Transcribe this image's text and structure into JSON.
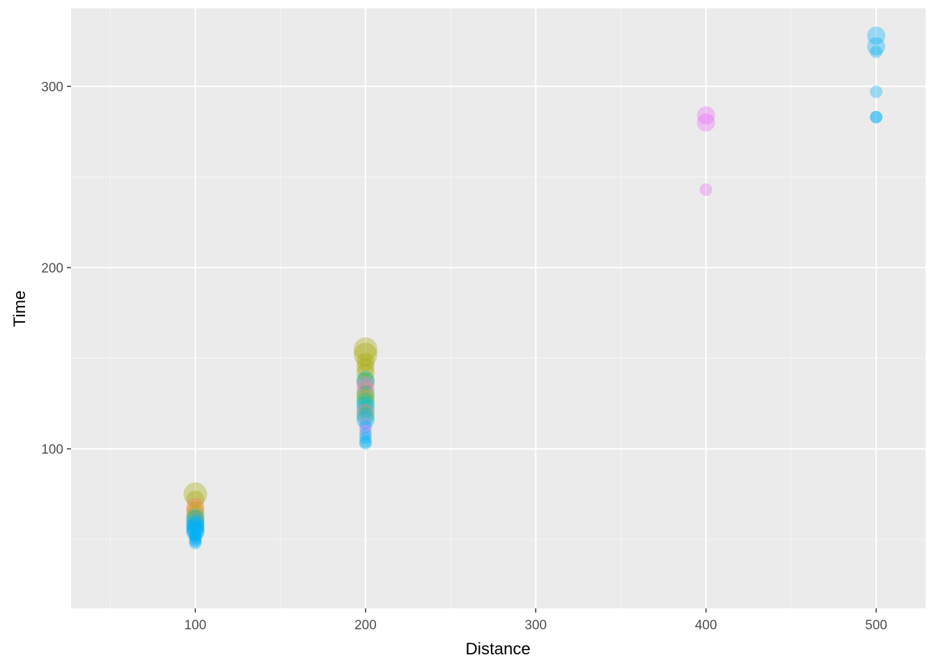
{
  "chart_data": {
    "type": "scatter",
    "title": "",
    "xlabel": "Distance",
    "ylabel": "Time",
    "xlim": [
      27,
      529
    ],
    "ylim": [
      12,
      343
    ],
    "x_ticks": [
      100,
      200,
      300,
      400,
      500
    ],
    "y_ticks": [
      100,
      200,
      300
    ],
    "x_tick_labels": [
      "100",
      "200",
      "300",
      "400",
      "500"
    ],
    "y_tick_labels": [
      "100",
      "200",
      "300"
    ],
    "grid": true,
    "legend": "none",
    "panel_background": "#ebebeb",
    "grid_major_color": "#ffffff",
    "grid_minor_color": "#f7f7f7",
    "point_opacity": 0.35,
    "points": [
      {
        "x": 100,
        "y": 75,
        "size": 3,
        "color": "#a3a500"
      },
      {
        "x": 100,
        "y": 72,
        "size": 2,
        "color": "#a3a500"
      },
      {
        "x": 100,
        "y": 68,
        "size": 2,
        "color": "#f8766d"
      },
      {
        "x": 100,
        "y": 66,
        "size": 2,
        "color": "#d89000"
      },
      {
        "x": 100,
        "y": 64,
        "size": 2,
        "color": "#a3a500"
      },
      {
        "x": 100,
        "y": 62,
        "size": 2,
        "color": "#00b0f6"
      },
      {
        "x": 100,
        "y": 61,
        "size": 2,
        "color": "#39b600"
      },
      {
        "x": 100,
        "y": 60,
        "size": 2,
        "color": "#9590ff"
      },
      {
        "x": 100,
        "y": 59,
        "size": 2,
        "color": "#00bfc4"
      },
      {
        "x": 100,
        "y": 58,
        "size": 2,
        "color": "#00b0f6"
      },
      {
        "x": 100,
        "y": 57,
        "size": 2,
        "color": "#00b0f6"
      },
      {
        "x": 100,
        "y": 56,
        "size": 2,
        "color": "#00b0f6"
      },
      {
        "x": 100,
        "y": 55,
        "size": 2,
        "color": "#00b0f6"
      },
      {
        "x": 100,
        "y": 54,
        "size": 2,
        "color": "#00b0f6"
      },
      {
        "x": 100,
        "y": 53,
        "size": 1,
        "color": "#00b0f6"
      },
      {
        "x": 100,
        "y": 52,
        "size": 1,
        "color": "#00b0f6"
      },
      {
        "x": 100,
        "y": 51,
        "size": 1,
        "color": "#00b0f6"
      },
      {
        "x": 100,
        "y": 50,
        "size": 1,
        "color": "#00b0f6"
      },
      {
        "x": 100,
        "y": 49,
        "size": 1,
        "color": "#00b0f6"
      },
      {
        "x": 100,
        "y": 48,
        "size": 1,
        "color": "#00b0f6"
      },
      {
        "x": 200,
        "y": 155,
        "size": 3,
        "color": "#a3a500"
      },
      {
        "x": 200,
        "y": 152,
        "size": 3,
        "color": "#a3a500"
      },
      {
        "x": 200,
        "y": 148,
        "size": 2,
        "color": "#a3a500"
      },
      {
        "x": 200,
        "y": 145,
        "size": 2,
        "color": "#a3a500"
      },
      {
        "x": 200,
        "y": 142,
        "size": 2,
        "color": "#a3a500"
      },
      {
        "x": 200,
        "y": 138,
        "size": 2,
        "color": "#00b0f6"
      },
      {
        "x": 200,
        "y": 137,
        "size": 2,
        "color": "#39b600"
      },
      {
        "x": 200,
        "y": 135,
        "size": 2,
        "color": "#e76bf3"
      },
      {
        "x": 200,
        "y": 132,
        "size": 2,
        "color": "#f8766d"
      },
      {
        "x": 200,
        "y": 130,
        "size": 2,
        "color": "#00bf7d"
      },
      {
        "x": 200,
        "y": 128,
        "size": 2,
        "color": "#a3a500"
      },
      {
        "x": 200,
        "y": 126,
        "size": 2,
        "color": "#00bf7d"
      },
      {
        "x": 200,
        "y": 124,
        "size": 2,
        "color": "#00b0f6"
      },
      {
        "x": 200,
        "y": 122,
        "size": 2,
        "color": "#00bfc4"
      },
      {
        "x": 200,
        "y": 120,
        "size": 2,
        "color": "#f8766d"
      },
      {
        "x": 200,
        "y": 118,
        "size": 2,
        "color": "#00bf7d"
      },
      {
        "x": 200,
        "y": 116,
        "size": 2,
        "color": "#00b0f6"
      },
      {
        "x": 200,
        "y": 114,
        "size": 1,
        "color": "#9590ff"
      },
      {
        "x": 200,
        "y": 112,
        "size": 1,
        "color": "#00b0f6"
      },
      {
        "x": 200,
        "y": 110,
        "size": 1,
        "color": "#e76bf3"
      },
      {
        "x": 200,
        "y": 108,
        "size": 1,
        "color": "#00b0f6"
      },
      {
        "x": 200,
        "y": 106,
        "size": 1,
        "color": "#00b0f6"
      },
      {
        "x": 200,
        "y": 104,
        "size": 1,
        "color": "#00b0f6"
      },
      {
        "x": 200,
        "y": 103,
        "size": 1,
        "color": "#00b0f6"
      },
      {
        "x": 400,
        "y": 284,
        "size": 2,
        "color": "#e76bf3"
      },
      {
        "x": 400,
        "y": 280,
        "size": 2,
        "color": "#e76bf3"
      },
      {
        "x": 400,
        "y": 243,
        "size": 1,
        "color": "#e76bf3"
      },
      {
        "x": 500,
        "y": 328,
        "size": 2,
        "color": "#00b0f6"
      },
      {
        "x": 500,
        "y": 322,
        "size": 2,
        "color": "#00b0f6"
      },
      {
        "x": 500,
        "y": 319,
        "size": 1,
        "color": "#00b0f6"
      },
      {
        "x": 500,
        "y": 297,
        "size": 1,
        "color": "#00b0f6"
      },
      {
        "x": 500,
        "y": 283,
        "size": 1,
        "color": "#00b0f6"
      },
      {
        "x": 500,
        "y": 283,
        "size": 1,
        "color": "#00b0f6"
      }
    ]
  }
}
